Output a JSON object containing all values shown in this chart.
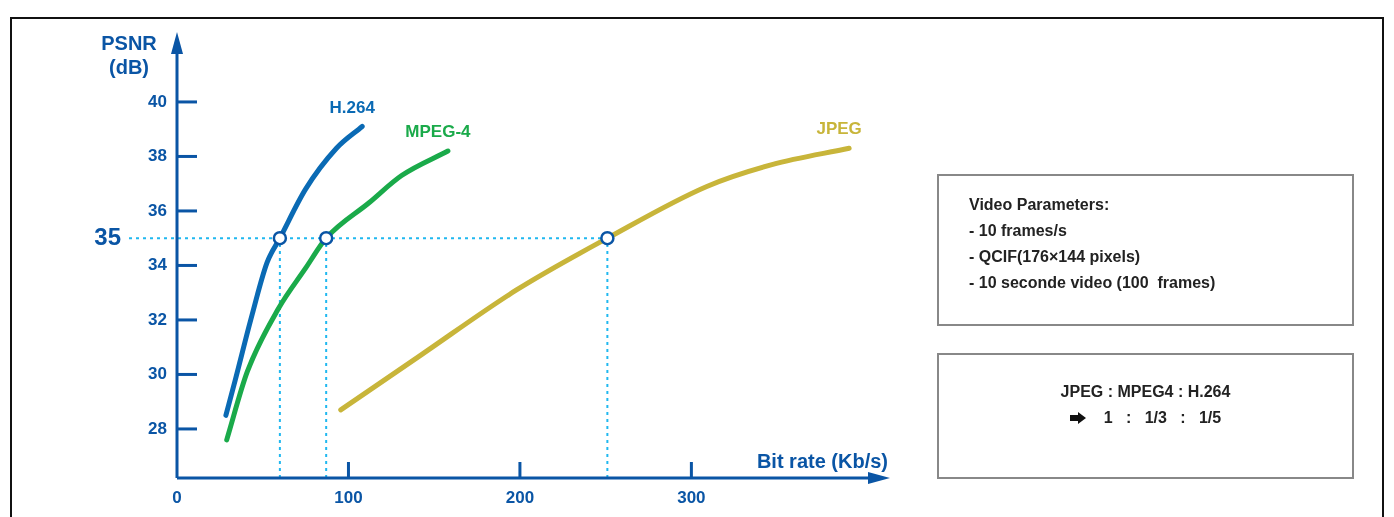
{
  "chart_data": {
    "type": "line",
    "xlabel": "Bit rate (Kb/s)",
    "ylabel": "PSNR (dB)",
    "xlim": [
      0,
      410
    ],
    "xticks": [
      0,
      100,
      200,
      300
    ],
    "ylim": [
      26.2,
      42.2
    ],
    "yticks": [
      28,
      30,
      32,
      34,
      36,
      38,
      40
    ],
    "line_style": "solid",
    "series": [
      {
        "name": "H.264",
        "color": "#0a6ab4",
        "x": [
          28.5,
          34,
          43,
          52.5,
          60,
          75,
          93,
          108
        ],
        "values": [
          28.5,
          29.8,
          32.0,
          34.1,
          35,
          36.8,
          38.3,
          39.1
        ]
      },
      {
        "name": "MPEG-4",
        "color": "#1aaa4a",
        "x": [
          29,
          41,
          59,
          75,
          87,
          112,
          131,
          158
        ],
        "values": [
          27.6,
          30.1,
          32.4,
          33.9,
          35,
          36.3,
          37.3,
          38.2
        ]
      },
      {
        "name": "JPEG",
        "color": "#c8b53a",
        "x": [
          95.5,
          142,
          198,
          251,
          309,
          347,
          392
        ],
        "values": [
          28.7,
          30.7,
          33.1,
          35,
          36.9,
          37.7,
          38.3
        ]
      },
      {
        "type": "scatter",
        "marker": "circle",
        "color": "#0a55a5",
        "x": [
          60,
          87,
          251
        ],
        "values": [
          35,
          35,
          35
        ]
      }
    ],
    "ref_lines": [
      {
        "axis": "y",
        "value": 35,
        "label": "35",
        "color": "#20b8f0",
        "line_style": "dotted"
      },
      {
        "axis": "x",
        "value": 60,
        "color": "#20b8f0",
        "line_style": "dotted"
      },
      {
        "axis": "x",
        "value": 87,
        "color": "#20b8f0",
        "line_style": "dotted"
      },
      {
        "axis": "x",
        "value": 251,
        "color": "#20b8f0",
        "line_style": "dotted"
      }
    ],
    "annotations": [
      "Video Parameters:\n- 10 frames/s\n- QCIF(176×144 pixels)\n- 10 seconde video (100  frames)",
      "JPEG : MPEG4 : H.264\n1   :   1/3   :   1/5"
    ]
  }
}
